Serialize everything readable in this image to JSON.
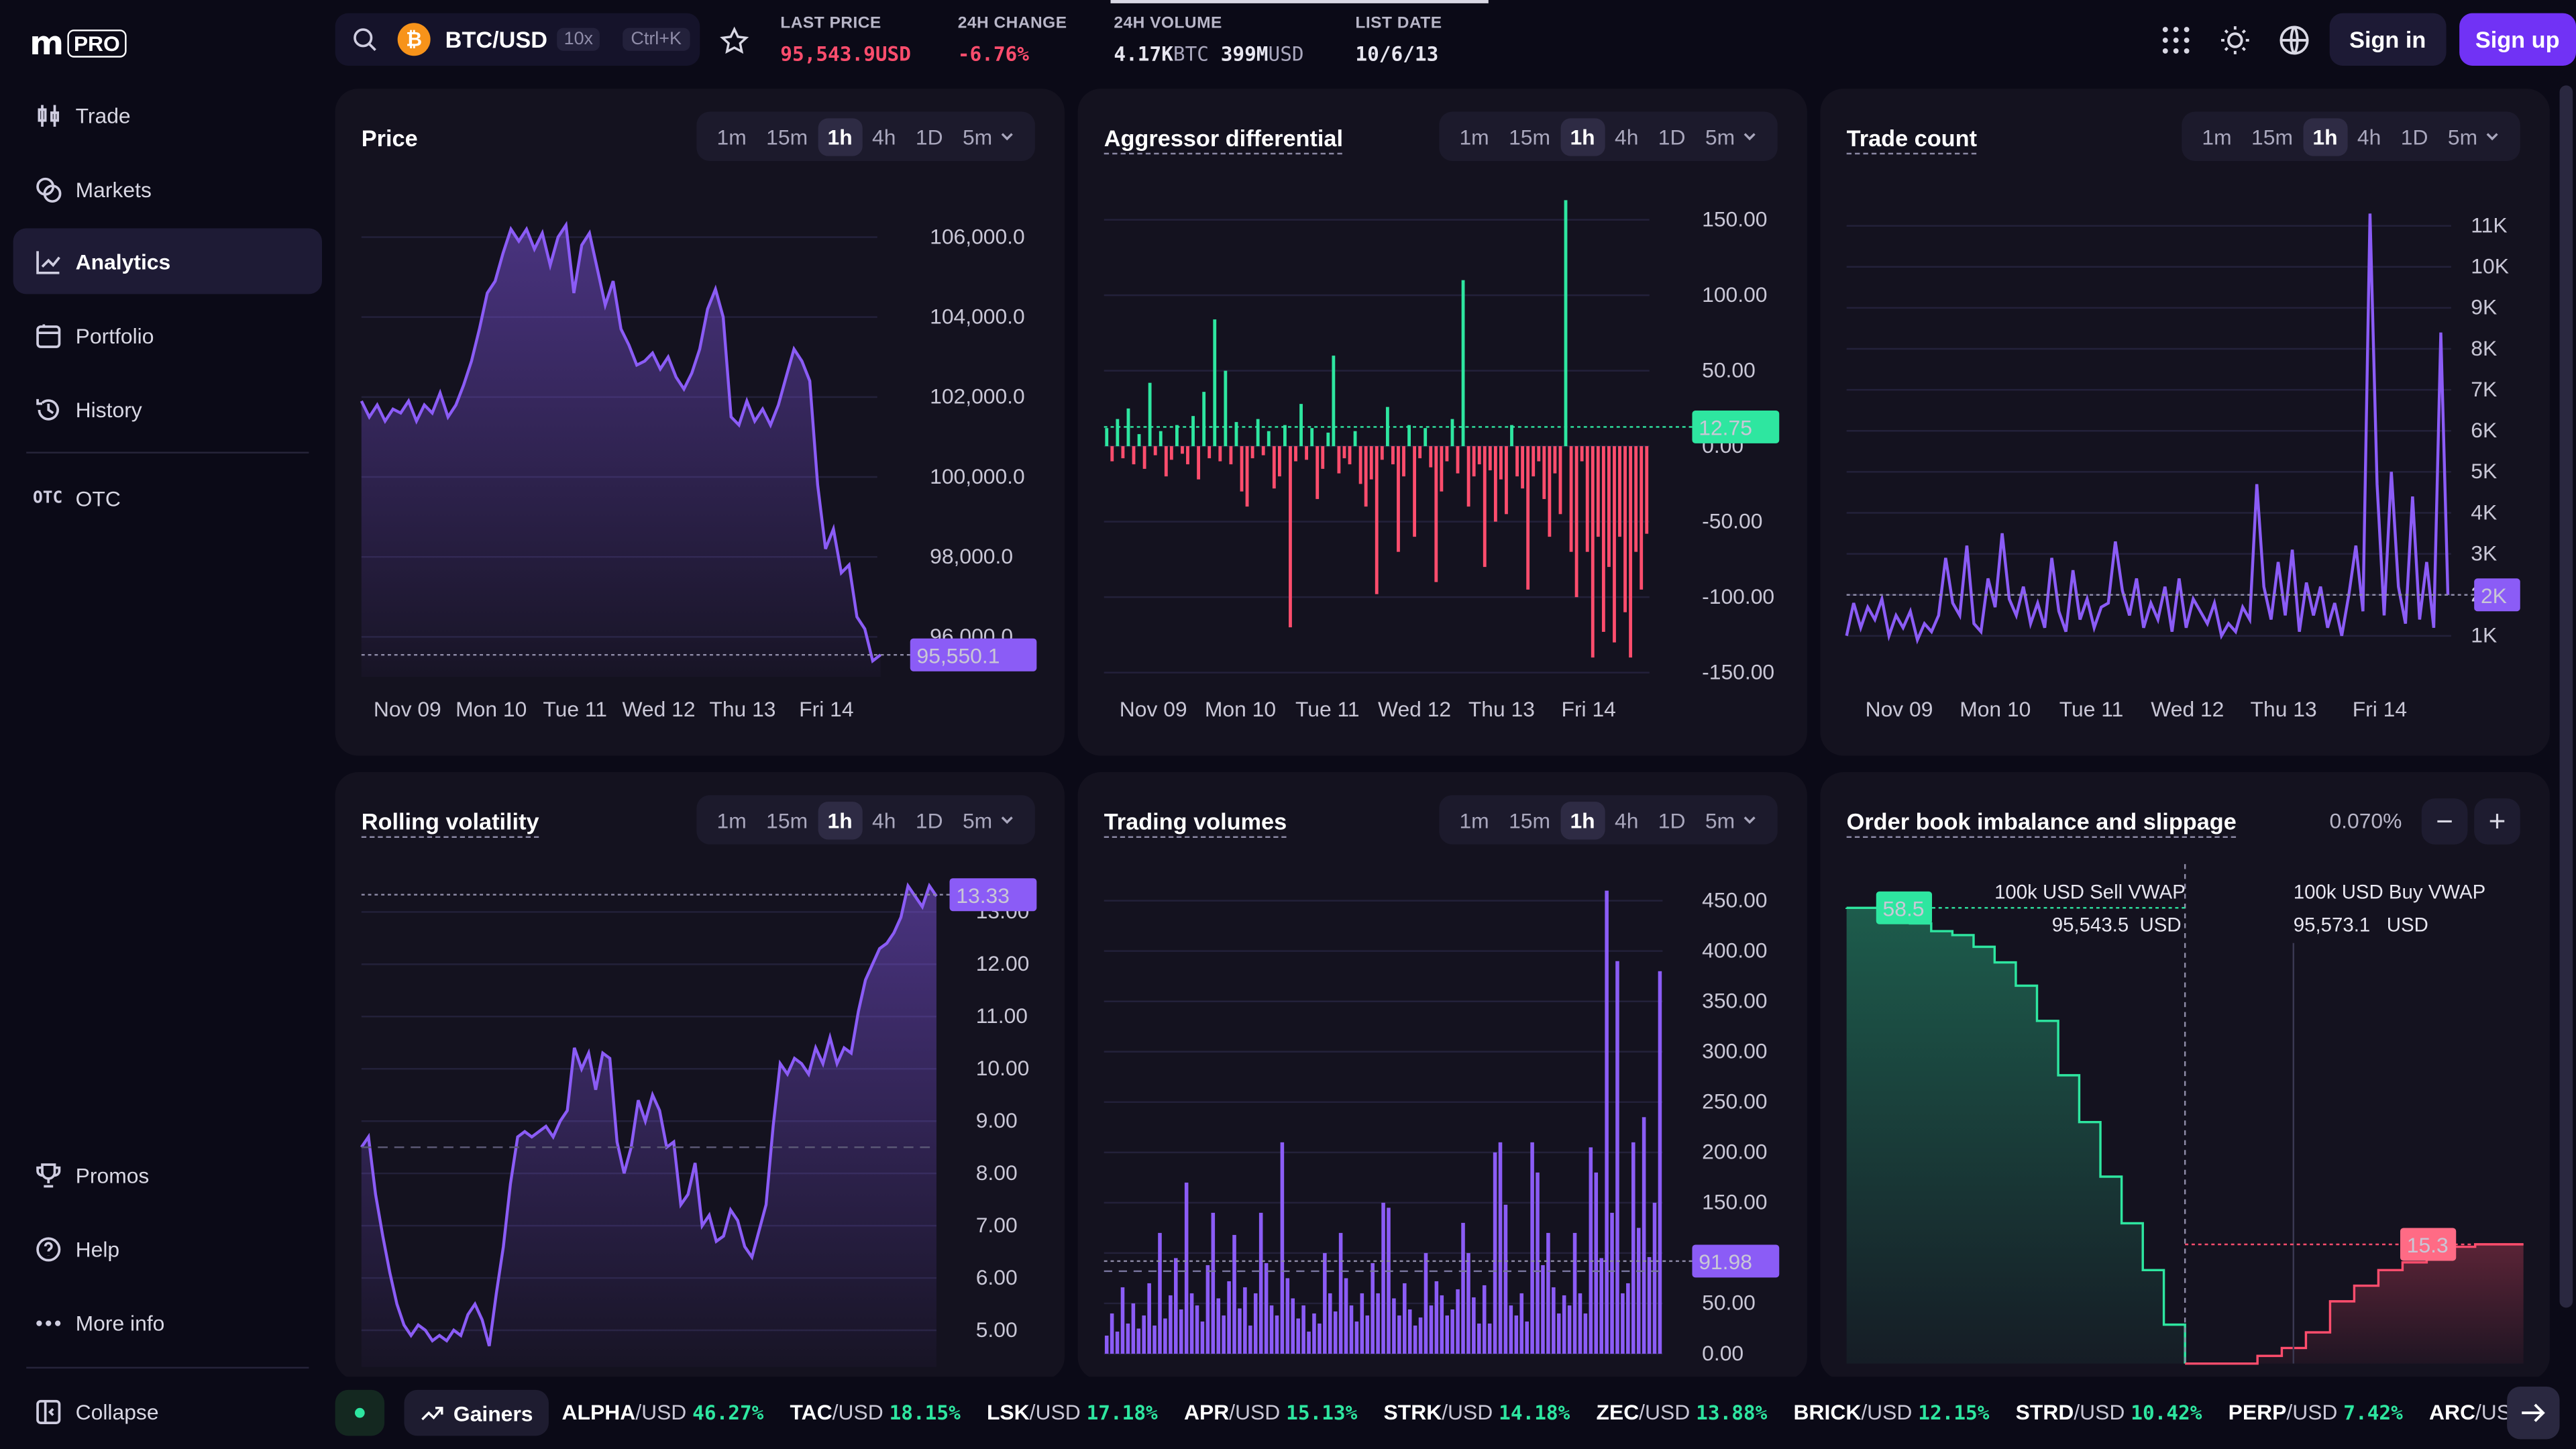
{
  "brand": {
    "logo": "m",
    "badge": "PRO"
  },
  "nav": {
    "items": [
      {
        "label": "Trade",
        "icon": "candlestick-icon"
      },
      {
        "label": "Markets",
        "icon": "markets-icon"
      },
      {
        "label": "Analytics",
        "icon": "analytics-icon"
      },
      {
        "label": "Portfolio",
        "icon": "portfolio-icon"
      },
      {
        "label": "History",
        "icon": "history-icon"
      },
      {
        "label": "OTC",
        "icon": "otc-icon",
        "tag": "OTC"
      }
    ],
    "bottom": [
      {
        "label": "Promos",
        "icon": "trophy-icon"
      },
      {
        "label": "Help",
        "icon": "help-icon"
      },
      {
        "label": "More info",
        "icon": "more-icon"
      }
    ],
    "collapse": "Collapse",
    "active": "Analytics"
  },
  "topbar": {
    "pair": "BTC/USD",
    "leverage": "10x",
    "shortcut": "Ctrl+K",
    "btc_glyph": "₿",
    "last_price": {
      "label": "LAST PRICE",
      "value": "95,543.9",
      "unit": "USD"
    },
    "change": {
      "label": "24H CHANGE",
      "value": "-6.76%"
    },
    "volume": {
      "label": "24H VOLUME",
      "btc": "4.17K",
      "btc_unit": "BTC",
      "usd": "399M",
      "usd_unit": "USD"
    },
    "list_date": {
      "label": "LIST DATE",
      "value": "10/6/13"
    },
    "sign_in": "Sign in",
    "sign_up": "Sign up"
  },
  "timeframes": [
    "1m",
    "15m",
    "1h",
    "4h",
    "1D",
    "5m"
  ],
  "selected_timeframe": "1h",
  "colors": {
    "purple": "#8b5cf6",
    "green": "#2ee6a0",
    "red": "#ff4d6d",
    "accent": "#7132f5"
  },
  "panels": {
    "price": {
      "title": "Price",
      "badge": "95,550.1"
    },
    "aggressor": {
      "title": "Aggressor differential",
      "badge": "12.75"
    },
    "trades": {
      "title": "Trade count",
      "badge": "2K"
    },
    "volatility": {
      "title": "Rolling volatility",
      "badge": "13.33"
    },
    "volumes": {
      "title": "Trading volumes",
      "badge": "91.98"
    },
    "orderbook": {
      "title": "Order book imbalance and slippage",
      "pct": "0.070%",
      "minus": "−",
      "plus": "+",
      "sell_label": "100k USD Sell VWAP",
      "sell_value": "95,543.5",
      "sell_unit": "USD",
      "buy_label": "100k USD Buy VWAP",
      "buy_value": "95,573.1",
      "buy_unit": "USD",
      "left_badge": "58.5",
      "right_badge": "15.3"
    }
  },
  "chart_data": [
    {
      "type": "area",
      "title": "Price",
      "x_labels": [
        "Nov 09",
        "Mon 10",
        "Tue 11",
        "Wed 12",
        "Thu 13",
        "Fri 14"
      ],
      "y_ticks": [
        "106,000.0",
        "104,000.0",
        "102,000.0",
        "100,000.0",
        "98,000.0",
        "96,000.0"
      ],
      "ylim": [
        95000,
        107000
      ],
      "values": [
        101900,
        101500,
        101800,
        101400,
        101700,
        101600,
        101900,
        101400,
        101800,
        101600,
        102100,
        101500,
        101800,
        102300,
        102900,
        103700,
        104600,
        104900,
        105600,
        106200,
        105900,
        106200,
        105700,
        106100,
        105300,
        106000,
        106300,
        104600,
        105800,
        106100,
        105200,
        104300,
        104900,
        103700,
        103300,
        102800,
        102900,
        103100,
        102700,
        103000,
        102500,
        102200,
        102600,
        103200,
        104200,
        104700,
        104000,
        101500,
        101300,
        101900,
        101400,
        101700,
        101300,
        101800,
        102500,
        103200,
        102900,
        102400,
        99800,
        98200,
        98700,
        97600,
        97800,
        96500,
        96200,
        95400,
        95550
      ],
      "last": 95550.1
    },
    {
      "type": "bar",
      "title": "Aggressor differential",
      "y_ticks": [
        "150.00",
        "100.00",
        "50.00",
        "0.00",
        "-50.00",
        "-100.00",
        "-150.00"
      ],
      "ylim": [
        -155,
        165
      ],
      "x_labels": [
        "Nov 09",
        "Mon 10",
        "Tue 11",
        "Wed 12",
        "Thu 13",
        "Fri 14"
      ],
      "values": [
        12,
        -10,
        18,
        -8,
        25,
        -12,
        8,
        -15,
        42,
        -6,
        10,
        -20,
        -9,
        14,
        -5,
        -12,
        20,
        -22,
        36,
        -8,
        84,
        -10,
        50,
        -12,
        16,
        -30,
        -40,
        -8,
        18,
        -6,
        10,
        -28,
        -20,
        14,
        -120,
        -10,
        28,
        -9,
        12,
        -35,
        -15,
        9,
        60,
        -18,
        -8,
        -12,
        10,
        -25,
        -40,
        -22,
        -98,
        -9,
        26,
        -12,
        -70,
        -20,
        14,
        -60,
        -8,
        12,
        -14,
        -90,
        -30,
        -10,
        18,
        -18,
        110,
        -40,
        -20,
        -12,
        -80,
        -16,
        -50,
        -22,
        -45,
        14,
        -20,
        -28,
        -95,
        -20,
        -10,
        -35,
        -60,
        -18,
        -45,
        163,
        -70,
        -100,
        -10,
        -70,
        -140,
        -60,
        -123,
        -80,
        -130,
        -60,
        -110,
        -140,
        -70,
        -95,
        -58
      ],
      "last": 12.75
    },
    {
      "type": "line",
      "title": "Trade count",
      "y_ticks": [
        "11K",
        "10K",
        "9K",
        "8K",
        "7K",
        "6K",
        "5K",
        "4K",
        "3K",
        "2K",
        "1K"
      ],
      "ylim": [
        0,
        11700
      ],
      "x_labels": [
        "Nov 09",
        "Mon 10",
        "Tue 11",
        "Wed 12",
        "Thu 13",
        "Fri 14"
      ],
      "values": [
        1000,
        1800,
        1200,
        1700,
        1400,
        1900,
        1000,
        1500,
        1200,
        1600,
        900,
        1300,
        1100,
        1500,
        2900,
        1800,
        1500,
        3200,
        1300,
        1100,
        2400,
        1700,
        3500,
        1900,
        1500,
        2200,
        1300,
        1800,
        1200,
        2900,
        1600,
        1100,
        2600,
        1400,
        1900,
        1200,
        1700,
        1800,
        3300,
        2100,
        1500,
        2400,
        1200,
        1800,
        1400,
        2200,
        1100,
        2400,
        1200,
        1900,
        1600,
        1300,
        1800,
        1000,
        1300,
        1100,
        1700,
        1400,
        4700,
        2200,
        1400,
        2800,
        1500,
        3100,
        1100,
        2300,
        1500,
        2200,
        1200,
        1800,
        1000,
        2000,
        3200,
        1600,
        11300,
        4700,
        1500,
        5000,
        2200,
        1300,
        4400,
        1400,
        2800,
        1200,
        8400,
        2000
      ],
      "last": 2000
    },
    {
      "type": "area",
      "title": "Rolling volatility",
      "y_ticks": [
        "13.00",
        "12.00",
        "11.00",
        "10.00",
        "9.00",
        "8.00",
        "7.00",
        "6.00",
        "5.00"
      ],
      "ylim": [
        4.3,
        13.6
      ],
      "x_labels": [],
      "values": [
        8.5,
        8.7,
        7.6,
        6.8,
        6.1,
        5.5,
        5.1,
        4.9,
        5.1,
        5.0,
        4.8,
        4.9,
        4.8,
        5.0,
        4.9,
        5.3,
        5.5,
        5.2,
        4.7,
        5.7,
        6.6,
        7.8,
        8.7,
        8.8,
        8.7,
        8.8,
        8.9,
        8.7,
        9.0,
        9.2,
        10.4,
        10.0,
        10.3,
        9.6,
        10.3,
        10.2,
        8.6,
        8.0,
        8.5,
        9.4,
        9.0,
        9.5,
        9.2,
        8.5,
        8.6,
        7.4,
        7.6,
        8.2,
        7.0,
        7.2,
        6.7,
        6.8,
        7.3,
        7.1,
        6.6,
        6.4,
        6.9,
        7.4,
        8.9,
        10.1,
        9.9,
        10.2,
        10.1,
        9.9,
        10.4,
        10.1,
        10.6,
        10.1,
        10.4,
        10.3,
        11.1,
        11.7,
        12.0,
        12.3,
        12.4,
        12.6,
        12.9,
        13.5,
        13.3,
        13.1,
        13.5,
        13.3
      ],
      "last": 13.33
    },
    {
      "type": "bar",
      "title": "Trading volumes",
      "y_ticks": [
        "450.00",
        "400.00",
        "350.00",
        "300.00",
        "250.00",
        "200.00",
        "150.00",
        "100.00",
        "50.00",
        "0.00"
      ],
      "ylim": [
        0,
        470
      ],
      "x_labels": [],
      "values": [
        18,
        40,
        22,
        66,
        30,
        50,
        25,
        38,
        70,
        28,
        120,
        35,
        58,
        95,
        44,
        170,
        60,
        48,
        32,
        88,
        140,
        55,
        38,
        72,
        118,
        45,
        66,
        28,
        60,
        140,
        90,
        48,
        38,
        210,
        75,
        55,
        35,
        48,
        22,
        40,
        30,
        100,
        60,
        42,
        120,
        75,
        48,
        32,
        60,
        38,
        90,
        60,
        150,
        145,
        55,
        38,
        70,
        44,
        28,
        36,
        100,
        48,
        72,
        58,
        38,
        44,
        64,
        130,
        100,
        56,
        30,
        68,
        30,
        200,
        210,
        148,
        48,
        38,
        60,
        32,
        210,
        180,
        88,
        120,
        66,
        40,
        58,
        48,
        120,
        60,
        40,
        205,
        180,
        95,
        460,
        140,
        390,
        60,
        70,
        210,
        125,
        235,
        96,
        150,
        380
      ],
      "last": 91.98
    },
    {
      "type": "area",
      "title": "Order book imbalance and slippage",
      "sell_depth": [
        58.5,
        58.5,
        58.5,
        56.5,
        55.5,
        55,
        53.5,
        51.5,
        48.5,
        44,
        37,
        31,
        24,
        18,
        12,
        5,
        0
      ],
      "buy_depth": [
        0,
        0,
        0,
        1,
        2,
        4,
        8,
        10,
        12,
        13,
        14,
        15,
        15.3,
        15.3,
        15.3
      ],
      "ylim": [
        0,
        62
      ]
    }
  ],
  "ticker": {
    "label": "Gainers",
    "items": [
      {
        "base": "ALPHA",
        "quote": "/USD",
        "pct": "46.27%"
      },
      {
        "base": "TAC",
        "quote": "/USD",
        "pct": "18.15%"
      },
      {
        "base": "LSK",
        "quote": "/USD",
        "pct": "17.18%"
      },
      {
        "base": "APR",
        "quote": "/USD",
        "pct": "15.13%"
      },
      {
        "base": "STRK",
        "quote": "/USD",
        "pct": "14.18%"
      },
      {
        "base": "ZEC",
        "quote": "/USD",
        "pct": "13.88%"
      },
      {
        "base": "BRICK",
        "quote": "/USD",
        "pct": "12.15%"
      },
      {
        "base": "STRD",
        "quote": "/USD",
        "pct": "10.42%"
      },
      {
        "base": "PERP",
        "quote": "/USD",
        "pct": "7.42%"
      },
      {
        "base": "ARC",
        "quote": "/USD",
        "pct": ""
      }
    ]
  }
}
